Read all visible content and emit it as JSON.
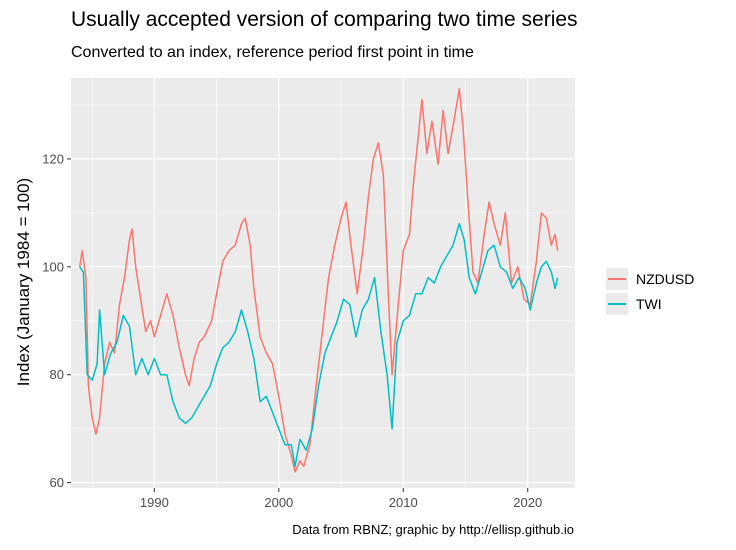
{
  "chart_data": {
    "type": "line",
    "title": "Usually accepted version of comparing two time series",
    "subtitle": "Converted to an index, reference period first point in time",
    "xlabel": "",
    "ylabel": "Index (January 1984 = 100)",
    "caption": "Data from RBNZ; graphic by http://ellisp.github.io",
    "xlim": [
      1983.3,
      2023.8
    ],
    "ylim": [
      59,
      135
    ],
    "x_ticks": [
      1990,
      2000,
      2010,
      2020
    ],
    "y_ticks": [
      60,
      80,
      100,
      120
    ],
    "grid": true,
    "legend_position": "right",
    "series": [
      {
        "name": "NZDUSD",
        "color": "#F8766D",
        "points": [
          [
            1984.0,
            100
          ],
          [
            1984.2,
            103
          ],
          [
            1984.5,
            98
          ],
          [
            1984.7,
            78
          ],
          [
            1985.0,
            72
          ],
          [
            1985.3,
            69
          ],
          [
            1985.6,
            72
          ],
          [
            1986.0,
            82
          ],
          [
            1986.4,
            86
          ],
          [
            1986.8,
            84
          ],
          [
            1987.2,
            93
          ],
          [
            1987.6,
            98
          ],
          [
            1988.0,
            105
          ],
          [
            1988.2,
            107
          ],
          [
            1988.5,
            100
          ],
          [
            1988.9,
            94
          ],
          [
            1989.3,
            88
          ],
          [
            1989.7,
            90
          ],
          [
            1990.0,
            87
          ],
          [
            1990.5,
            91
          ],
          [
            1991.0,
            95
          ],
          [
            1991.5,
            91
          ],
          [
            1992.0,
            85
          ],
          [
            1992.5,
            80
          ],
          [
            1992.8,
            78
          ],
          [
            1993.2,
            83
          ],
          [
            1993.6,
            86
          ],
          [
            1994.0,
            87
          ],
          [
            1994.6,
            90
          ],
          [
            1995.0,
            95
          ],
          [
            1995.5,
            101
          ],
          [
            1996.0,
            103
          ],
          [
            1996.5,
            104
          ],
          [
            1997.0,
            108
          ],
          [
            1997.3,
            109
          ],
          [
            1997.7,
            104
          ],
          [
            1998.0,
            96
          ],
          [
            1998.5,
            87
          ],
          [
            1999.0,
            84
          ],
          [
            1999.5,
            82
          ],
          [
            2000.0,
            76
          ],
          [
            2000.5,
            69
          ],
          [
            2001.0,
            65
          ],
          [
            2001.3,
            62
          ],
          [
            2001.7,
            64
          ],
          [
            2002.0,
            63
          ],
          [
            2002.5,
            67
          ],
          [
            2003.0,
            78
          ],
          [
            2003.5,
            88
          ],
          [
            2004.0,
            98
          ],
          [
            2004.5,
            104
          ],
          [
            2005.0,
            109
          ],
          [
            2005.4,
            112
          ],
          [
            2005.8,
            104
          ],
          [
            2006.3,
            95
          ],
          [
            2006.8,
            104
          ],
          [
            2007.2,
            113
          ],
          [
            2007.6,
            120
          ],
          [
            2008.0,
            123
          ],
          [
            2008.4,
            117
          ],
          [
            2008.8,
            95
          ],
          [
            2009.1,
            80
          ],
          [
            2009.6,
            93
          ],
          [
            2010.0,
            103
          ],
          [
            2010.5,
            106
          ],
          [
            2010.8,
            115
          ],
          [
            2011.2,
            124
          ],
          [
            2011.5,
            131
          ],
          [
            2011.9,
            121
          ],
          [
            2012.3,
            127
          ],
          [
            2012.8,
            119
          ],
          [
            2013.2,
            129
          ],
          [
            2013.6,
            121
          ],
          [
            2014.0,
            126
          ],
          [
            2014.5,
            133
          ],
          [
            2014.8,
            126
          ],
          [
            2015.2,
            112
          ],
          [
            2015.6,
            99
          ],
          [
            2016.0,
            97
          ],
          [
            2016.5,
            106
          ],
          [
            2016.9,
            112
          ],
          [
            2017.3,
            108
          ],
          [
            2017.8,
            104
          ],
          [
            2018.2,
            110
          ],
          [
            2018.7,
            97
          ],
          [
            2019.2,
            100
          ],
          [
            2019.7,
            94
          ],
          [
            2020.2,
            93
          ],
          [
            2020.7,
            101
          ],
          [
            2021.1,
            110
          ],
          [
            2021.5,
            109
          ],
          [
            2021.9,
            104
          ],
          [
            2022.2,
            106
          ],
          [
            2022.4,
            103
          ]
        ]
      },
      {
        "name": "TWI",
        "color": "#00BFC4",
        "points": [
          [
            1984.0,
            100
          ],
          [
            1984.3,
            99
          ],
          [
            1984.6,
            80
          ],
          [
            1985.0,
            79
          ],
          [
            1985.4,
            82
          ],
          [
            1985.6,
            92
          ],
          [
            1986.0,
            80
          ],
          [
            1986.5,
            84
          ],
          [
            1987.0,
            86
          ],
          [
            1987.5,
            91
          ],
          [
            1988.0,
            89
          ],
          [
            1988.5,
            80
          ],
          [
            1989.0,
            83
          ],
          [
            1989.5,
            80
          ],
          [
            1990.0,
            83
          ],
          [
            1990.5,
            80
          ],
          [
            1991.0,
            80
          ],
          [
            1991.5,
            75
          ],
          [
            1992.0,
            72
          ],
          [
            1992.5,
            71
          ],
          [
            1993.0,
            72
          ],
          [
            1993.5,
            74
          ],
          [
            1994.0,
            76
          ],
          [
            1994.5,
            78
          ],
          [
            1995.0,
            82
          ],
          [
            1995.5,
            85
          ],
          [
            1996.0,
            86
          ],
          [
            1996.5,
            88
          ],
          [
            1997.0,
            92
          ],
          [
            1997.5,
            88
          ],
          [
            1998.0,
            83
          ],
          [
            1998.5,
            75
          ],
          [
            1999.0,
            76
          ],
          [
            1999.5,
            73
          ],
          [
            2000.0,
            70
          ],
          [
            2000.5,
            67
          ],
          [
            2001.0,
            67
          ],
          [
            2001.3,
            63
          ],
          [
            2001.7,
            68
          ],
          [
            2002.2,
            66
          ],
          [
            2002.7,
            70
          ],
          [
            2003.2,
            78
          ],
          [
            2003.7,
            84
          ],
          [
            2004.2,
            87
          ],
          [
            2004.7,
            90
          ],
          [
            2005.2,
            94
          ],
          [
            2005.7,
            93
          ],
          [
            2006.2,
            87
          ],
          [
            2006.7,
            92
          ],
          [
            2007.2,
            94
          ],
          [
            2007.7,
            98
          ],
          [
            2008.2,
            88
          ],
          [
            2008.7,
            80
          ],
          [
            2009.1,
            70
          ],
          [
            2009.5,
            86
          ],
          [
            2010.0,
            90
          ],
          [
            2010.5,
            91
          ],
          [
            2011.0,
            95
          ],
          [
            2011.5,
            95
          ],
          [
            2012.0,
            98
          ],
          [
            2012.5,
            97
          ],
          [
            2013.0,
            100
          ],
          [
            2013.5,
            102
          ],
          [
            2014.0,
            104
          ],
          [
            2014.5,
            108
          ],
          [
            2014.9,
            105
          ],
          [
            2015.3,
            98
          ],
          [
            2015.8,
            95
          ],
          [
            2016.3,
            99
          ],
          [
            2016.8,
            103
          ],
          [
            2017.3,
            104
          ],
          [
            2017.8,
            100
          ],
          [
            2018.3,
            99
          ],
          [
            2018.8,
            96
          ],
          [
            2019.3,
            98
          ],
          [
            2019.8,
            96
          ],
          [
            2020.2,
            92
          ],
          [
            2020.7,
            97
          ],
          [
            2021.1,
            100
          ],
          [
            2021.5,
            101
          ],
          [
            2021.9,
            99
          ],
          [
            2022.2,
            96
          ],
          [
            2022.4,
            98
          ]
        ]
      }
    ]
  }
}
